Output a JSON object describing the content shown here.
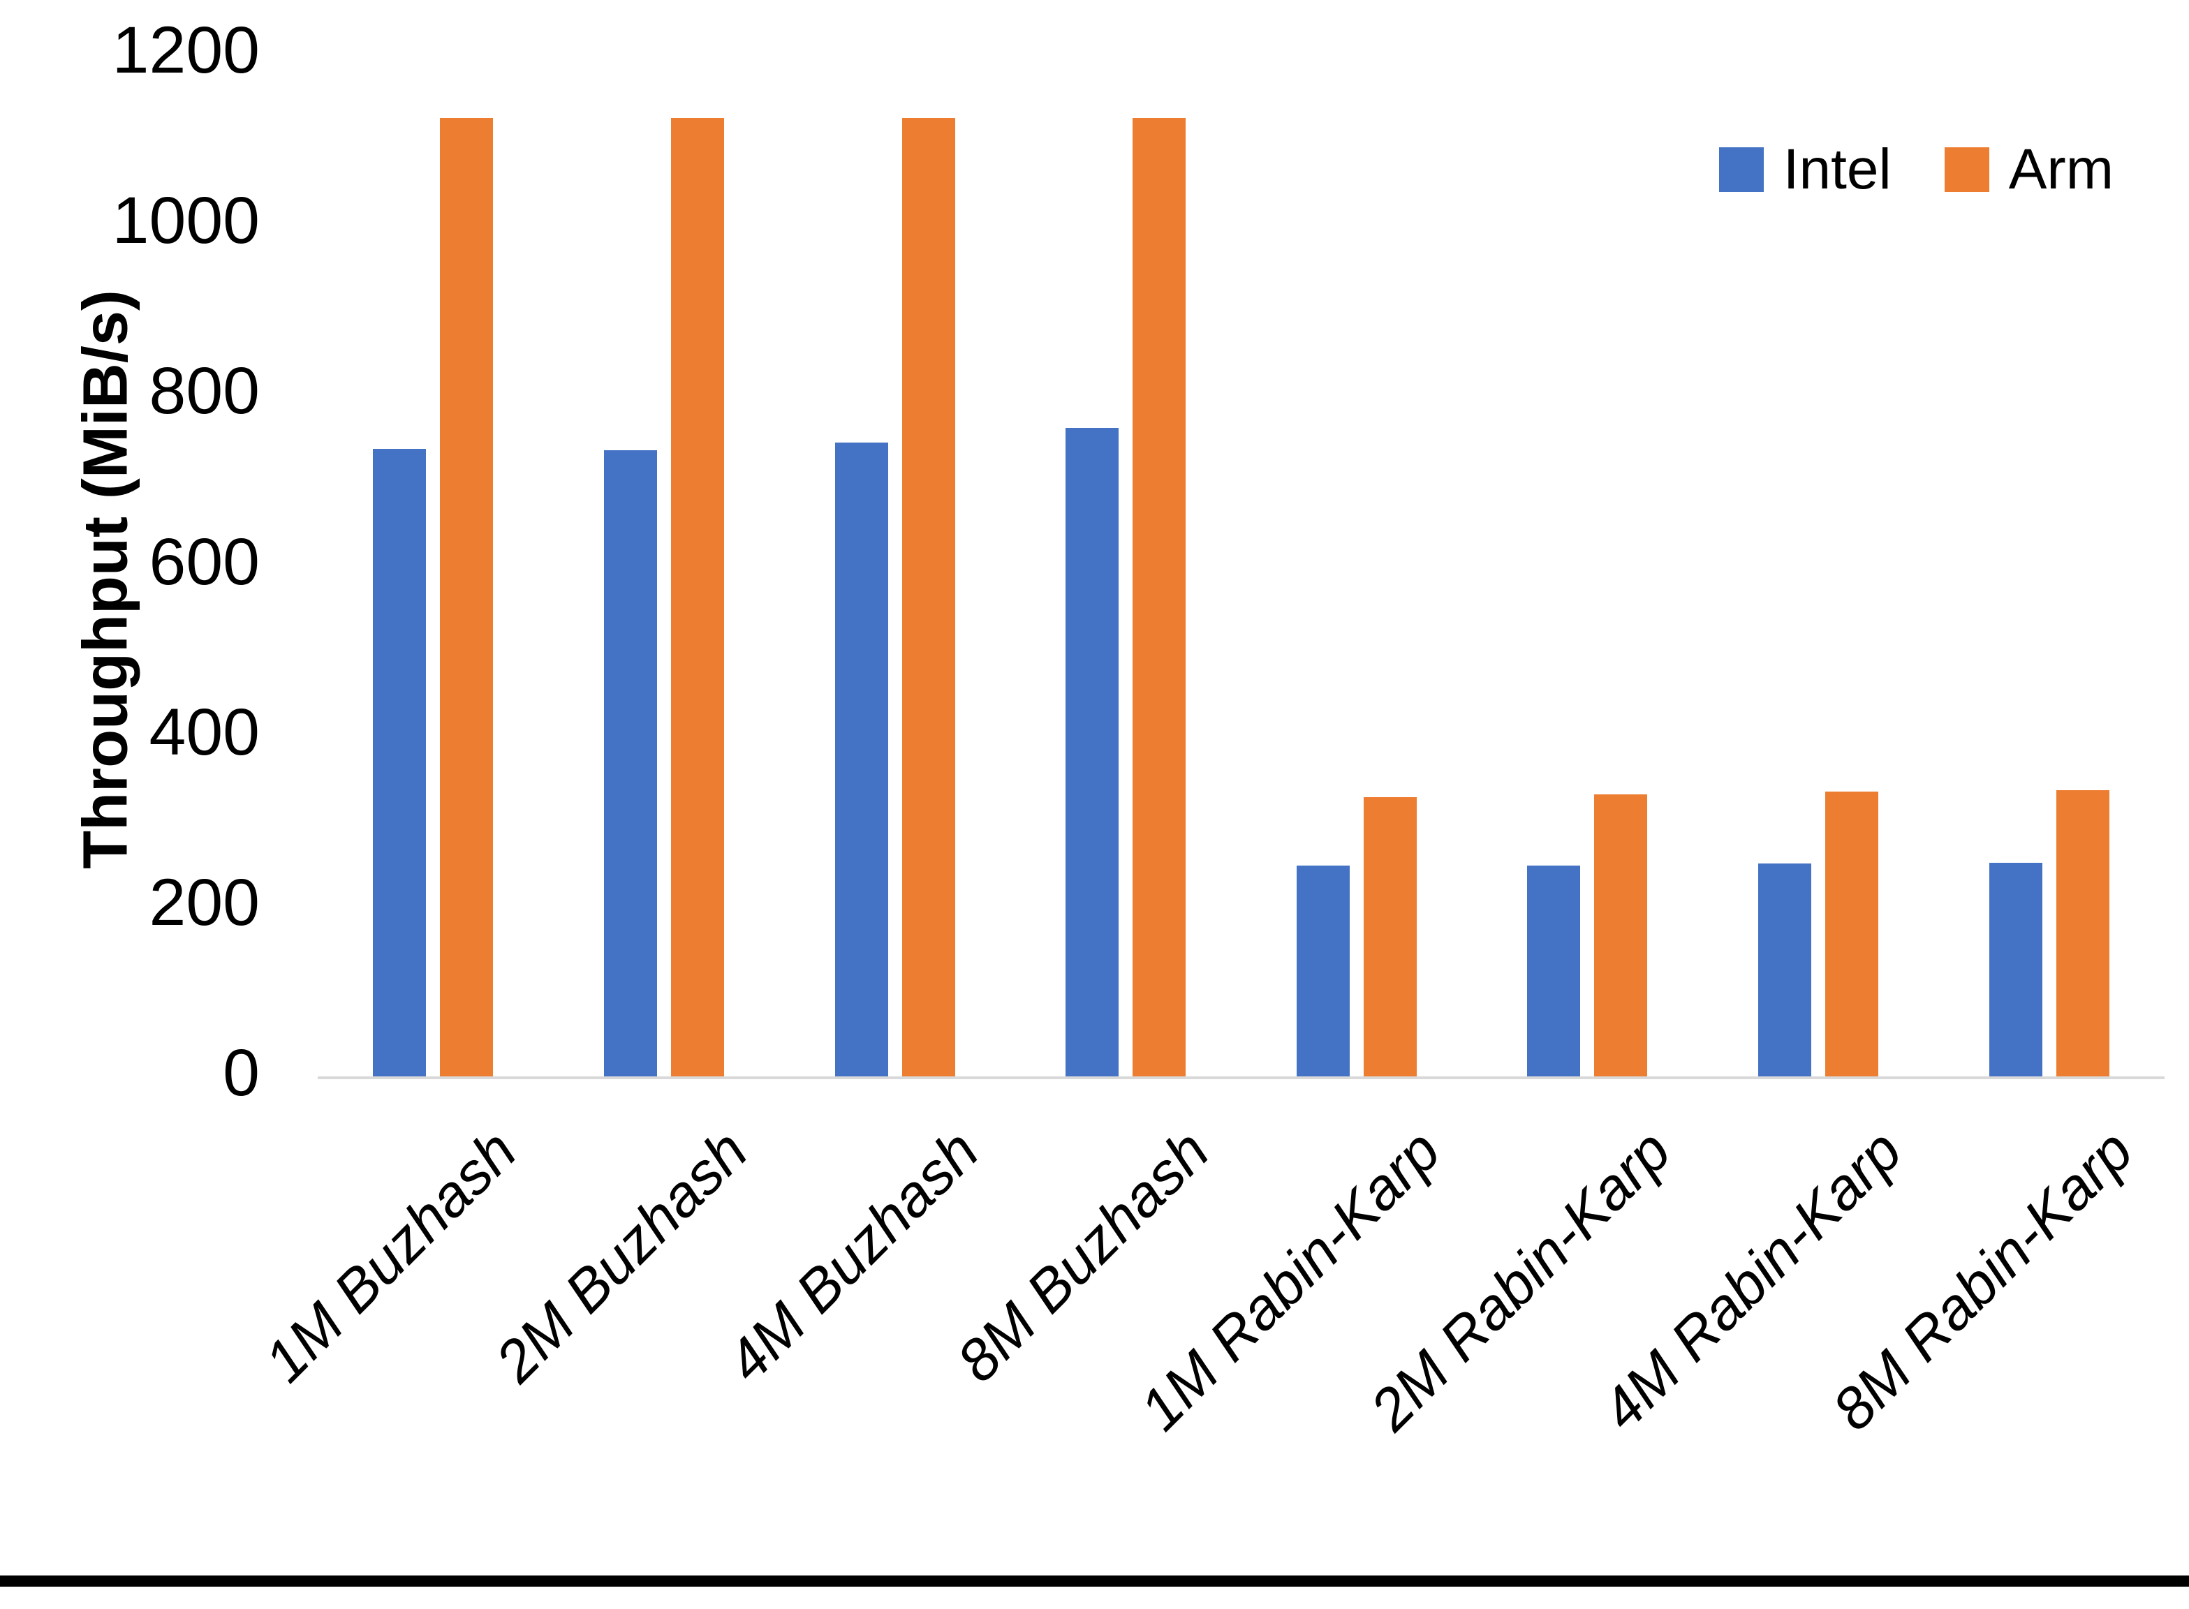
{
  "colors": {
    "intel": "#4472C4",
    "arm": "#ED7D31",
    "axis_line": "#d9d9d9",
    "text": "#000000"
  },
  "legend": {
    "items": [
      {
        "label": "Intel",
        "color": "#4472C4"
      },
      {
        "label": "Arm",
        "color": "#ED7D31"
      }
    ]
  },
  "chart_data": {
    "type": "bar",
    "title": "",
    "xlabel": "",
    "ylabel": "Throughput (MiB/s)",
    "ylim": [
      0,
      1200
    ],
    "yticks": [
      0,
      200,
      400,
      600,
      800,
      1000,
      1200
    ],
    "grid": false,
    "legend_position": "top-right",
    "categories": [
      "1M Buzhash",
      "2M Buzhash",
      "4M Buzhash",
      "8M Buzhash",
      "1M Rabin-Karp",
      "2M Rabin-Karp",
      "4M Rabin-Karp",
      "8M Rabin-Karp"
    ],
    "series": [
      {
        "name": "Intel",
        "color": "#4472C4",
        "values": [
          736,
          735,
          744,
          761,
          247,
          247,
          250,
          251
        ]
      },
      {
        "name": "Arm",
        "color": "#ED7D31",
        "values": [
          1125,
          1125,
          1125,
          1125,
          328,
          331,
          334,
          336
        ]
      }
    ]
  }
}
